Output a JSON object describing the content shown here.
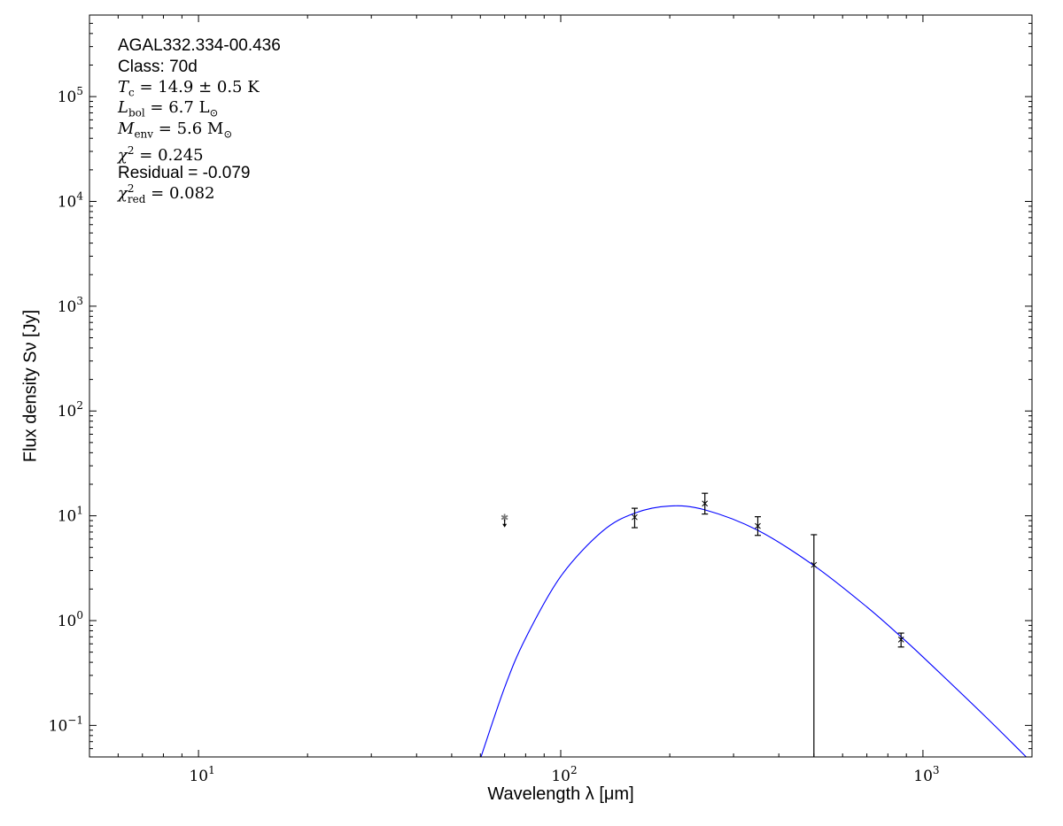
{
  "chart_data": {
    "type": "scatter",
    "xscale": "log",
    "yscale": "log",
    "xlim": [
      5,
      2000
    ],
    "ylim": [
      0.05,
      600000
    ],
    "xlabel": "Wavelength λ [μm]",
    "ylabel": "Flux density Sν [Jy]",
    "xticks": [
      {
        "base": "10",
        "exp": "1",
        "value": 10
      },
      {
        "base": "10",
        "exp": "2",
        "value": 100
      },
      {
        "base": "10",
        "exp": "3",
        "value": 1000
      }
    ],
    "yticks": [
      {
        "base": "10",
        "exp": "−1",
        "value": 0.1
      },
      {
        "base": "10",
        "exp": "0",
        "value": 1
      },
      {
        "base": "10",
        "exp": "1",
        "value": 10
      },
      {
        "base": "10",
        "exp": "2",
        "value": 100
      },
      {
        "base": "10",
        "exp": "3",
        "value": 1000
      },
      {
        "base": "10",
        "exp": "4",
        "value": 10000
      },
      {
        "base": "10",
        "exp": "5",
        "value": 100000
      }
    ],
    "grid": false,
    "points": [
      {
        "x": 160,
        "y": 9.7,
        "ylo": 7.7,
        "yhi": 11.8
      },
      {
        "x": 250,
        "y": 13.1,
        "ylo": 10.4,
        "yhi": 16.4
      },
      {
        "x": 350,
        "y": 8.0,
        "ylo": 6.5,
        "yhi": 9.8
      },
      {
        "x": 500,
        "y": 3.4,
        "ylo": 0.0,
        "yhi": 6.6
      },
      {
        "x": 870,
        "y": 0.66,
        "ylo": 0.56,
        "yhi": 0.76
      }
    ],
    "upper_limits": [
      {
        "x": 70,
        "y": 9.6
      }
    ],
    "model": {
      "color": "#0000ff",
      "x": [
        60,
        70,
        80,
        100,
        130,
        160,
        200,
        250,
        350,
        500,
        700,
        870,
        1000,
        1500,
        2000
      ],
      "y": [
        0.048,
        0.23,
        0.68,
        2.64,
        7.07,
        10.6,
        12.4,
        11.4,
        7.27,
        3.35,
        1.35,
        0.7,
        0.45,
        0.118,
        0.044
      ]
    },
    "annotations": {
      "source": "AGAL332.334-00.436",
      "class": "Class: 70d",
      "tc": {
        "sym": "T",
        "sub": "c",
        "rest": " = 14.9 ± 0.5 K"
      },
      "lbol": {
        "sym": "L",
        "sub": "bol",
        "rest": " = 6.7 L",
        "unit_sub": "⊙"
      },
      "menv": {
        "sym": "M",
        "sub": "env",
        "rest": " = 5.6 M",
        "unit_sub": "⊙"
      },
      "chi2": {
        "sym": "χ",
        "sup": "2",
        "rest": " = 0.245"
      },
      "residual": "Residual = -0.079",
      "chi2red": {
        "sym": "χ",
        "sup": "2",
        "sub": "red",
        "rest": " = 0.082"
      }
    }
  }
}
